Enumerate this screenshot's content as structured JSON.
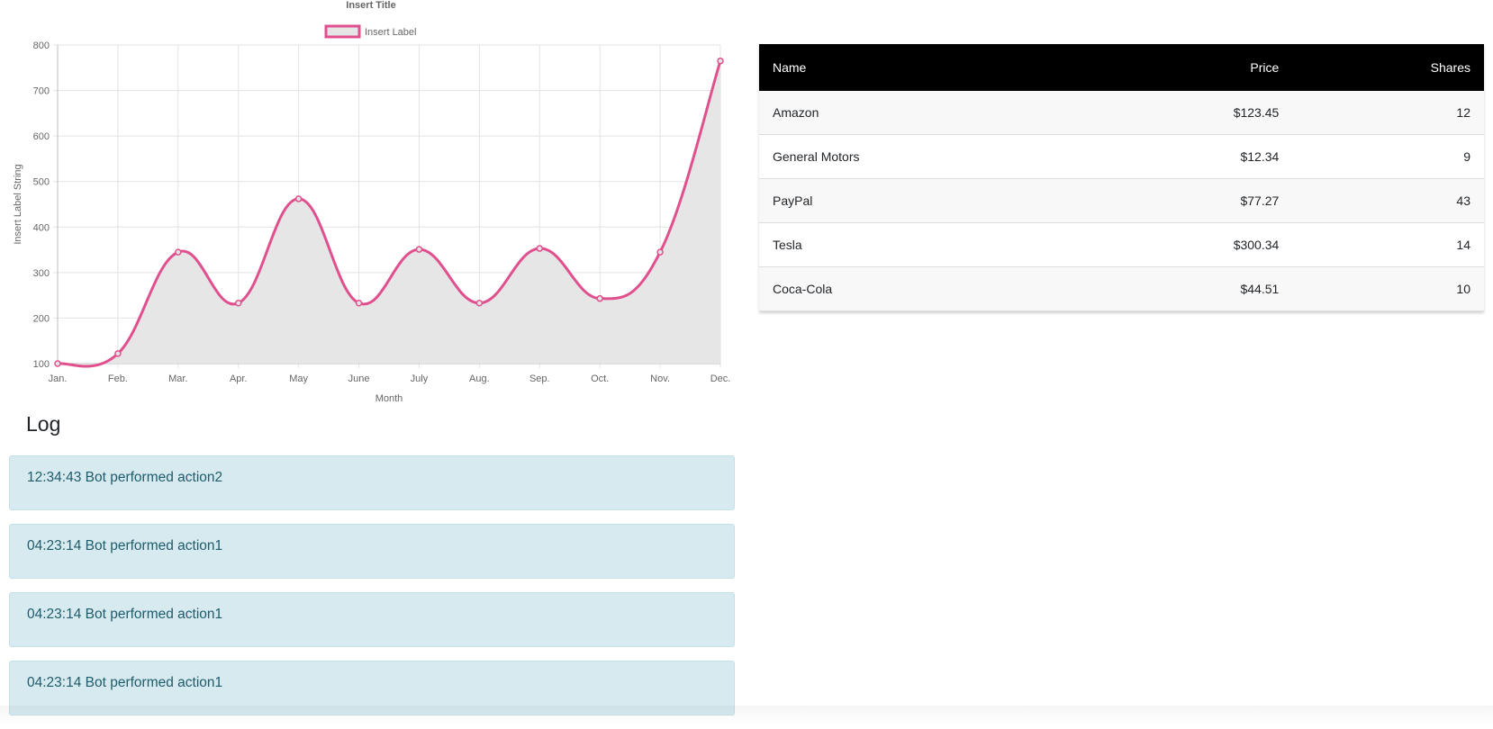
{
  "chart_data": {
    "type": "line",
    "title": "Insert Title",
    "legend": {
      "label": "Insert Label",
      "position": "top"
    },
    "xlabel": "Month",
    "ylabel": "Insert Label String",
    "categories": [
      "Jan.",
      "Feb.",
      "Mar.",
      "Apr.",
      "May",
      "June",
      "July",
      "Aug.",
      "Sep.",
      "Oct.",
      "Nov.",
      "Dec."
    ],
    "series": [
      {
        "name": "Insert Label",
        "values": [
          100,
          122,
          345,
          233,
          462,
          233,
          351,
          233,
          353,
          243,
          345,
          765
        ]
      }
    ],
    "ylim": [
      100,
      800
    ],
    "yticks": [
      100,
      200,
      300,
      400,
      500,
      600,
      700,
      800
    ],
    "grid": true,
    "fill": true,
    "colors": {
      "line": "#e0508e",
      "fill": "#e5e5e5",
      "grid": "#e3e3e3",
      "text": "#666666"
    }
  },
  "log": {
    "title": "Log",
    "entries": [
      "12:34:43 Bot performed action2",
      "04:23:14 Bot performed action1",
      "04:23:14 Bot performed action1",
      "04:23:14 Bot performed action1"
    ]
  },
  "table": {
    "headers": {
      "name": "Name",
      "price": "Price",
      "shares": "Shares"
    },
    "rows": [
      {
        "name": "Amazon",
        "price": "$123.45",
        "shares": "12"
      },
      {
        "name": "General Motors",
        "price": "$12.34",
        "shares": "9"
      },
      {
        "name": "PayPal",
        "price": "$77.27",
        "shares": "43"
      },
      {
        "name": "Tesla",
        "price": "$300.34",
        "shares": "14"
      },
      {
        "name": "Coca-Cola",
        "price": "$44.51",
        "shares": "10"
      }
    ]
  }
}
